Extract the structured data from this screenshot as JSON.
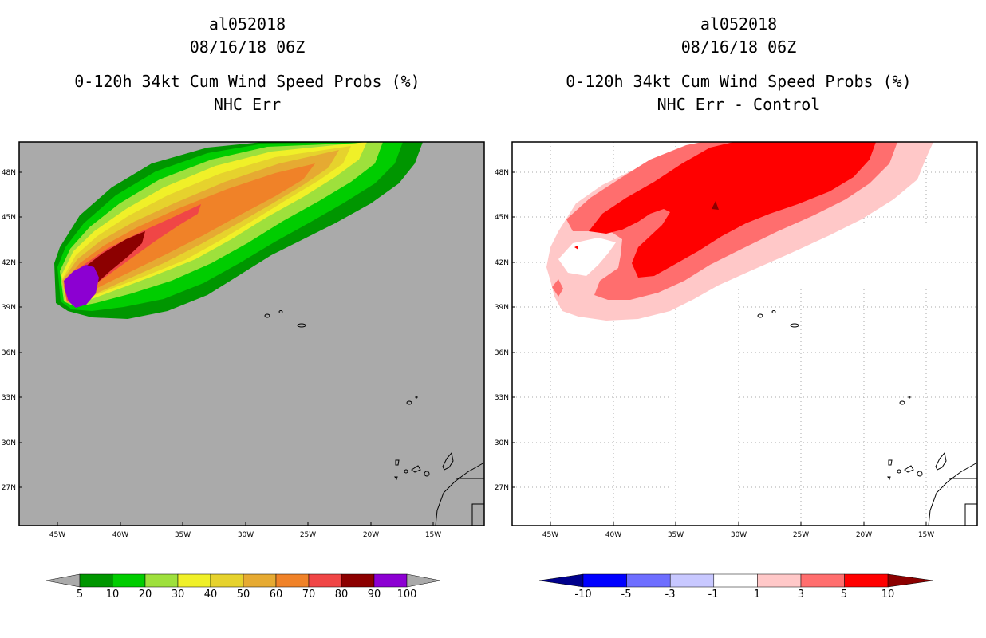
{
  "left_panel": {
    "storm_id": "al052018",
    "datetime": "08/16/18 06Z",
    "product": "0-120h 34kt Cum Wind Speed Probs (%)",
    "subtitle": "NHC Err",
    "colorbar": {
      "labels": [
        "5",
        "10",
        "20",
        "30",
        "40",
        "50",
        "60",
        "70",
        "80",
        "90",
        "100"
      ],
      "colors": [
        "#009600",
        "#00cd00",
        "#9ee03c",
        "#f0f028",
        "#e6d22d",
        "#e6aa32",
        "#f08228",
        "#f04646",
        "#8c0000",
        "#8c00d2"
      ]
    }
  },
  "right_panel": {
    "storm_id": "al052018",
    "datetime": "08/16/18 06Z",
    "product": "0-120h 34kt Cum Wind Speed Probs (%)",
    "subtitle": "NHC Err - Control",
    "colorbar": {
      "labels": [
        "-10",
        "-5",
        "-3",
        "-1",
        "1",
        "3",
        "5",
        "10"
      ],
      "colors": [
        "#00008c",
        "#0000ff",
        "#6e6eff",
        "#c8c8ff",
        "#ffffff",
        "#ffc8c8",
        "#ff6e6e",
        "#ff0000",
        "#8c0000"
      ]
    }
  },
  "axes": {
    "lat_labels": [
      "48N",
      "45N",
      "42N",
      "39N",
      "36N",
      "33N",
      "30N",
      "27N"
    ],
    "lon_labels": [
      "45W",
      "40W",
      "35W",
      "30W",
      "25W",
      "20W",
      "15W"
    ]
  }
}
